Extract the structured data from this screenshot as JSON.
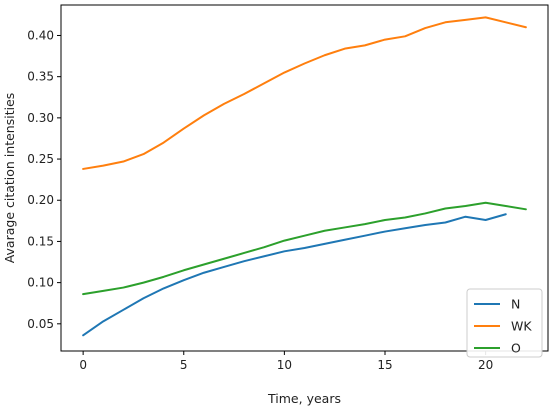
{
  "chart_data": {
    "type": "line",
    "title": "",
    "xlabel": "Time, years",
    "ylabel": "Avarage citation intensities",
    "xlim": [
      -1.1,
      23.1
    ],
    "ylim": [
      0.017,
      0.437
    ],
    "xticks": [
      0,
      5,
      10,
      15,
      20
    ],
    "yticks": [
      0.05,
      0.1,
      0.15,
      0.2,
      0.25,
      0.3,
      0.35,
      0.4
    ],
    "ytick_labels": [
      "0.05",
      "0.10",
      "0.15",
      "0.20",
      "0.25",
      "0.30",
      "0.35",
      "0.40"
    ],
    "grid": false,
    "legend": "lower-right",
    "series": [
      {
        "name": "N",
        "color": "#1f77b4",
        "x": [
          0,
          1,
          2,
          3,
          4,
          5,
          6,
          7,
          8,
          9,
          10,
          11,
          12,
          13,
          14,
          15,
          16,
          17,
          18,
          19,
          20,
          21
        ],
        "y": [
          0.036,
          0.053,
          0.067,
          0.081,
          0.093,
          0.103,
          0.112,
          0.119,
          0.126,
          0.132,
          0.138,
          0.142,
          0.147,
          0.152,
          0.157,
          0.162,
          0.166,
          0.17,
          0.173,
          0.18,
          0.176,
          0.183
        ]
      },
      {
        "name": "WK",
        "color": "#ff7f0e",
        "x": [
          0,
          1,
          2,
          3,
          4,
          5,
          6,
          7,
          8,
          9,
          10,
          11,
          12,
          13,
          14,
          15,
          16,
          17,
          18,
          19,
          20,
          21,
          22
        ],
        "y": [
          0.238,
          0.242,
          0.247,
          0.256,
          0.27,
          0.287,
          0.303,
          0.317,
          0.329,
          0.342,
          0.355,
          0.366,
          0.376,
          0.384,
          0.388,
          0.395,
          0.399,
          0.409,
          0.416,
          0.419,
          0.422,
          0.416,
          0.41
        ]
      },
      {
        "name": "O",
        "color": "#2ca02c",
        "x": [
          0,
          1,
          2,
          3,
          4,
          5,
          6,
          7,
          8,
          9,
          10,
          11,
          12,
          13,
          14,
          15,
          16,
          17,
          18,
          19,
          20,
          21,
          22
        ],
        "y": [
          0.086,
          0.09,
          0.094,
          0.1,
          0.107,
          0.115,
          0.122,
          0.129,
          0.136,
          0.143,
          0.151,
          0.157,
          0.163,
          0.167,
          0.171,
          0.176,
          0.179,
          0.184,
          0.19,
          0.193,
          0.197,
          0.193,
          0.189
        ]
      }
    ]
  }
}
